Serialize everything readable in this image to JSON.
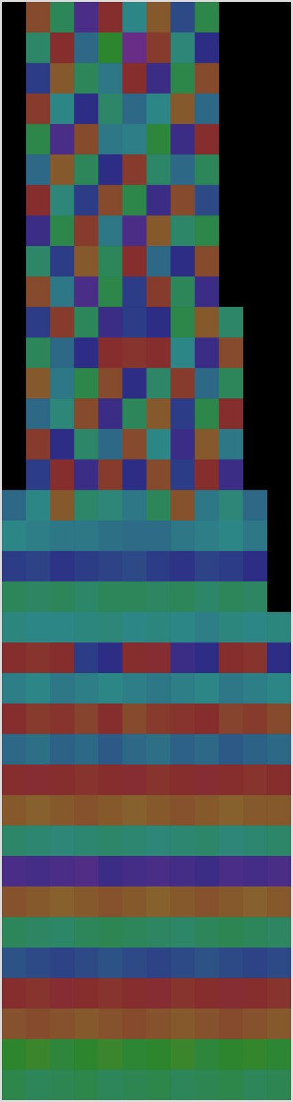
{
  "chart_data": {
    "type": "heatmap",
    "tick_labels": false,
    "cells": [
      [
        null,
        20,
        150,
        260,
        0,
        180,
        30,
        220,
        140,
        null,
        null,
        null
      ],
      [
        null,
        160,
        0,
        200,
        120,
        280,
        10,
        170,
        240,
        null,
        null,
        null
      ],
      [
        null,
        230,
        30,
        150,
        190,
        0,
        250,
        140,
        20,
        null,
        null,
        null
      ],
      [
        null,
        10,
        180,
        240,
        160,
        200,
        180,
        30,
        200,
        null,
        null,
        null
      ],
      [
        null,
        140,
        260,
        20,
        190,
        185,
        130,
        250,
        0,
        null,
        null,
        null
      ],
      [
        null,
        200,
        30,
        150,
        240,
        10,
        160,
        200,
        150,
        null,
        null,
        null
      ],
      [
        null,
        0,
        170,
        230,
        20,
        140,
        250,
        20,
        220,
        null,
        null,
        null
      ],
      [
        null,
        250,
        140,
        10,
        190,
        260,
        30,
        160,
        140,
        null,
        null,
        null
      ],
      [
        null,
        160,
        230,
        30,
        150,
        0,
        200,
        240,
        20,
        null,
        null,
        null
      ],
      [
        null,
        20,
        190,
        260,
        140,
        230,
        10,
        150,
        250,
        null,
        null,
        null
      ],
      [
        null,
        230,
        10,
        150,
        250,
        230,
        240,
        140,
        30,
        160,
        null,
        null
      ],
      [
        null,
        150,
        200,
        240,
        0,
        5,
        0,
        180,
        250,
        20,
        null,
        null
      ],
      [
        null,
        30,
        190,
        140,
        20,
        240,
        160,
        10,
        200,
        150,
        null,
        null
      ],
      [
        null,
        200,
        170,
        20,
        250,
        150,
        30,
        230,
        140,
        0,
        null,
        null
      ],
      [
        null,
        10,
        240,
        160,
        200,
        20,
        180,
        250,
        30,
        190,
        null,
        null
      ],
      [
        null,
        230,
        0,
        250,
        10,
        240,
        20,
        230,
        0,
        250,
        null,
        null
      ],
      [
        200,
        180,
        30,
        160,
        170,
        190,
        150,
        25,
        190,
        170,
        200,
        null
      ],
      [
        180,
        185,
        190,
        190,
        195,
        198,
        198,
        190,
        185,
        180,
        190,
        null
      ],
      [
        230,
        225,
        235,
        230,
        225,
        220,
        230,
        235,
        225,
        230,
        240,
        null
      ],
      [
        150,
        155,
        150,
        160,
        150,
        150,
        155,
        150,
        160,
        150,
        155,
        null
      ],
      [
        175,
        180,
        180,
        175,
        170,
        180,
        175,
        180,
        185,
        175,
        180,
        175
      ],
      [
        0,
        5,
        0,
        230,
        240,
        0,
        355,
        250,
        240,
        0,
        5,
        240
      ],
      [
        185,
        180,
        190,
        185,
        180,
        185,
        190,
        185,
        180,
        190,
        185,
        180
      ],
      [
        0,
        10,
        5,
        15,
        0,
        20,
        10,
        5,
        0,
        15,
        10,
        20
      ],
      [
        200,
        195,
        205,
        200,
        210,
        200,
        195,
        205,
        200,
        210,
        205,
        200
      ],
      [
        0,
        355,
        0,
        5,
        0,
        355,
        5,
        0,
        355,
        0,
        5,
        0
      ],
      [
        30,
        35,
        30,
        25,
        30,
        35,
        30,
        25,
        30,
        35,
        30,
        30
      ],
      [
        160,
        165,
        170,
        165,
        160,
        165,
        170,
        165,
        160,
        170,
        165,
        160
      ],
      [
        260,
        255,
        260,
        265,
        250,
        255,
        260,
        255,
        250,
        260,
        255,
        260
      ],
      [
        25,
        30,
        35,
        30,
        25,
        30,
        35,
        30,
        25,
        30,
        35,
        30
      ],
      [
        150,
        155,
        160,
        150,
        145,
        150,
        155,
        160,
        150,
        145,
        150,
        155
      ],
      [
        215,
        220,
        225,
        220,
        215,
        220,
        225,
        220,
        215,
        220,
        225,
        220
      ],
      [
        0,
        5,
        355,
        0,
        5,
        0,
        355,
        5,
        0,
        355,
        0,
        5
      ],
      [
        25,
        20,
        25,
        30,
        25,
        20,
        25,
        30,
        25,
        20,
        25,
        30
      ],
      [
        120,
        110,
        130,
        120,
        110,
        125,
        120,
        110,
        130,
        120,
        115,
        125
      ],
      [
        140,
        150,
        145,
        140,
        150,
        145,
        140,
        150,
        145,
        140,
        150,
        145
      ]
    ]
  }
}
